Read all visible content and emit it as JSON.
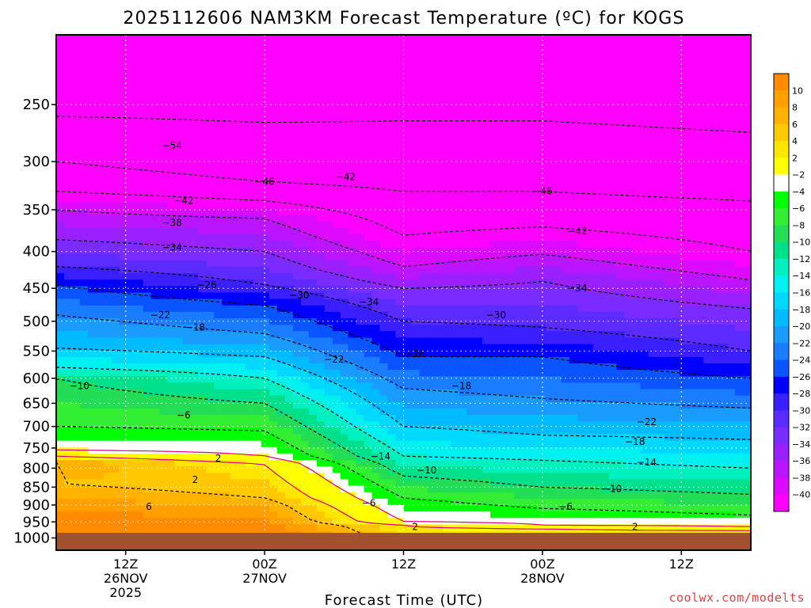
{
  "chart_data": {
    "type": "heatmap",
    "title": "2025112606 NAM3KM Forecast Temperature (ºC) for KOGS",
    "xlabel": "Forecast Time (UTC)",
    "ylabel": "",
    "x_unit": "hours from 2025-11-26 06Z",
    "xlim": [
      0,
      60
    ],
    "x_ticks": [
      {
        "hour": 6,
        "lines": [
          "12Z",
          "26NOV",
          "2025"
        ]
      },
      {
        "hour": 18,
        "lines": [
          "00Z",
          "27NOV"
        ]
      },
      {
        "hour": 30,
        "lines": [
          "12Z"
        ]
      },
      {
        "hour": 42,
        "lines": [
          "00Z",
          "28NOV"
        ]
      },
      {
        "hour": 54,
        "lines": [
          "12Z"
        ]
      }
    ],
    "y_unit": "pressure (hPa), log scale",
    "ylim": [
      1040,
      200
    ],
    "y_ticks": [
      250,
      300,
      350,
      400,
      450,
      500,
      550,
      600,
      650,
      700,
      750,
      800,
      850,
      900,
      950,
      1000
    ],
    "ground_level_hpa": 990,
    "colorbar": {
      "label_values": [
        10,
        8,
        6,
        4,
        2,
        -2,
        -4,
        -6,
        -8,
        -10,
        -12,
        -14,
        -16,
        -18,
        -20,
        -22,
        -24,
        -26,
        -28,
        -30,
        -32,
        -34,
        -36,
        -38,
        -40
      ],
      "colors": [
        "#ff8c00",
        "#ff9f00",
        "#ffb300",
        "#ffc800",
        "#ffe600",
        "#ffff00",
        "#ffffff",
        "#00ff00",
        "#33ee33",
        "#22dd55",
        "#00e08a",
        "#00f0c0",
        "#00f0f0",
        "#00d8ff",
        "#00bbff",
        "#1a9cff",
        "#1a7cff",
        "#0a55ff",
        "#0000ff",
        "#3a20ff",
        "#5b2bff",
        "#7a2bff",
        "#9b20ff",
        "#bb14ff",
        "#dc0aff",
        "#ff00ff"
      ]
    },
    "temperature_levels": [
      {
        "hour": 0,
        "p_at_temps": [
          [
            8,
            790
          ],
          [
            6,
            840
          ],
          [
            2,
            770
          ],
          [
            -2,
            755
          ],
          [
            -6,
            700
          ],
          [
            -10,
            600
          ],
          [
            -14,
            580
          ],
          [
            -18,
            545
          ],
          [
            -22,
            490
          ],
          [
            -26,
            445
          ],
          [
            -30,
            420
          ],
          [
            -34,
            385
          ],
          [
            -38,
            350
          ],
          [
            -42,
            330
          ],
          [
            -46,
            300
          ],
          [
            -54,
            260
          ]
        ]
      },
      {
        "hour": 18,
        "p_at_temps": [
          [
            8,
            900
          ],
          [
            6,
            880
          ],
          [
            2,
            790
          ],
          [
            -2,
            770
          ],
          [
            -6,
            710
          ],
          [
            -10,
            650
          ],
          [
            -14,
            600
          ],
          [
            -18,
            560
          ],
          [
            -22,
            520
          ],
          [
            -26,
            475
          ],
          [
            -30,
            445
          ],
          [
            -34,
            400
          ],
          [
            -38,
            360
          ],
          [
            -42,
            340
          ],
          [
            -46,
            320
          ],
          [
            -54,
            265
          ]
        ]
      },
      {
        "hour": 30,
        "p_at_temps": [
          [
            2,
            960
          ],
          [
            -2,
            950
          ],
          [
            -6,
            880
          ],
          [
            -10,
            820
          ],
          [
            -14,
            770
          ],
          [
            -18,
            700
          ],
          [
            -22,
            620
          ],
          [
            -26,
            560
          ],
          [
            -30,
            500
          ],
          [
            -34,
            450
          ],
          [
            -38,
            420
          ],
          [
            -42,
            380
          ],
          [
            -46,
            330
          ]
        ]
      },
      {
        "hour": 42,
        "p_at_temps": [
          [
            2,
            970
          ],
          [
            -2,
            960
          ],
          [
            -6,
            910
          ],
          [
            -10,
            850
          ],
          [
            -14,
            780
          ],
          [
            -18,
            720
          ],
          [
            -22,
            640
          ],
          [
            -26,
            560
          ],
          [
            -30,
            510
          ],
          [
            -34,
            440
          ],
          [
            -42,
            370
          ],
          [
            -46,
            330
          ]
        ]
      },
      {
        "hour": 60,
        "p_at_temps": [
          [
            2,
            975
          ],
          [
            -2,
            965
          ],
          [
            -6,
            930
          ],
          [
            -10,
            870
          ],
          [
            -14,
            800
          ],
          [
            -18,
            730
          ],
          [
            -22,
            660
          ],
          [
            -26,
            600
          ],
          [
            -30,
            550
          ],
          [
            -34,
            480
          ],
          [
            -42,
            400
          ],
          [
            -46,
            340
          ]
        ]
      }
    ],
    "contour_labels": [
      {
        "value": "-54",
        "hour": 10,
        "p": 285
      },
      {
        "value": "-46",
        "hour": 18,
        "p": 320
      },
      {
        "value": "-42",
        "hour": 25,
        "p": 315
      },
      {
        "value": "-46",
        "hour": 42,
        "p": 330
      },
      {
        "value": "-42",
        "hour": 45,
        "p": 375
      },
      {
        "value": "-42",
        "hour": 11,
        "p": 340
      },
      {
        "value": "-38",
        "hour": 10,
        "p": 365
      },
      {
        "value": "-34",
        "hour": 10,
        "p": 395
      },
      {
        "value": "-26",
        "hour": 13,
        "p": 445
      },
      {
        "value": "-30",
        "hour": 21,
        "p": 460
      },
      {
        "value": "-34",
        "hour": 27,
        "p": 470
      },
      {
        "value": "-34",
        "hour": 45,
        "p": 450
      },
      {
        "value": "-30",
        "hour": 38,
        "p": 490
      },
      {
        "value": "-22",
        "hour": 9,
        "p": 490
      },
      {
        "value": "-18",
        "hour": 12,
        "p": 510
      },
      {
        "value": "-22",
        "hour": 24,
        "p": 565
      },
      {
        "value": "-26",
        "hour": 31,
        "p": 555
      },
      {
        "value": "-18",
        "hour": 35,
        "p": 615
      },
      {
        "value": "-10",
        "hour": 2,
        "p": 615
      },
      {
        "value": "-6",
        "hour": 11,
        "p": 675
      },
      {
        "value": "-22",
        "hour": 51,
        "p": 690
      },
      {
        "value": "-18",
        "hour": 50,
        "p": 735
      },
      {
        "value": "-14",
        "hour": 28,
        "p": 770
      },
      {
        "value": "-10",
        "hour": 32,
        "p": 805
      },
      {
        "value": "-14",
        "hour": 51,
        "p": 785
      },
      {
        "value": "-10",
        "hour": 48,
        "p": 855
      },
      {
        "value": "-6",
        "hour": 27,
        "p": 895
      },
      {
        "value": "-6",
        "hour": 44,
        "p": 905
      },
      {
        "value": "2",
        "hour": 14,
        "p": 775
      },
      {
        "value": "2",
        "hour": 12,
        "p": 830
      },
      {
        "value": "6",
        "hour": 8,
        "p": 905
      },
      {
        "value": "2",
        "hour": 31,
        "p": 965
      },
      {
        "value": "2",
        "hour": 50,
        "p": 965
      }
    ],
    "credit": "coolwx.com/modelts"
  }
}
